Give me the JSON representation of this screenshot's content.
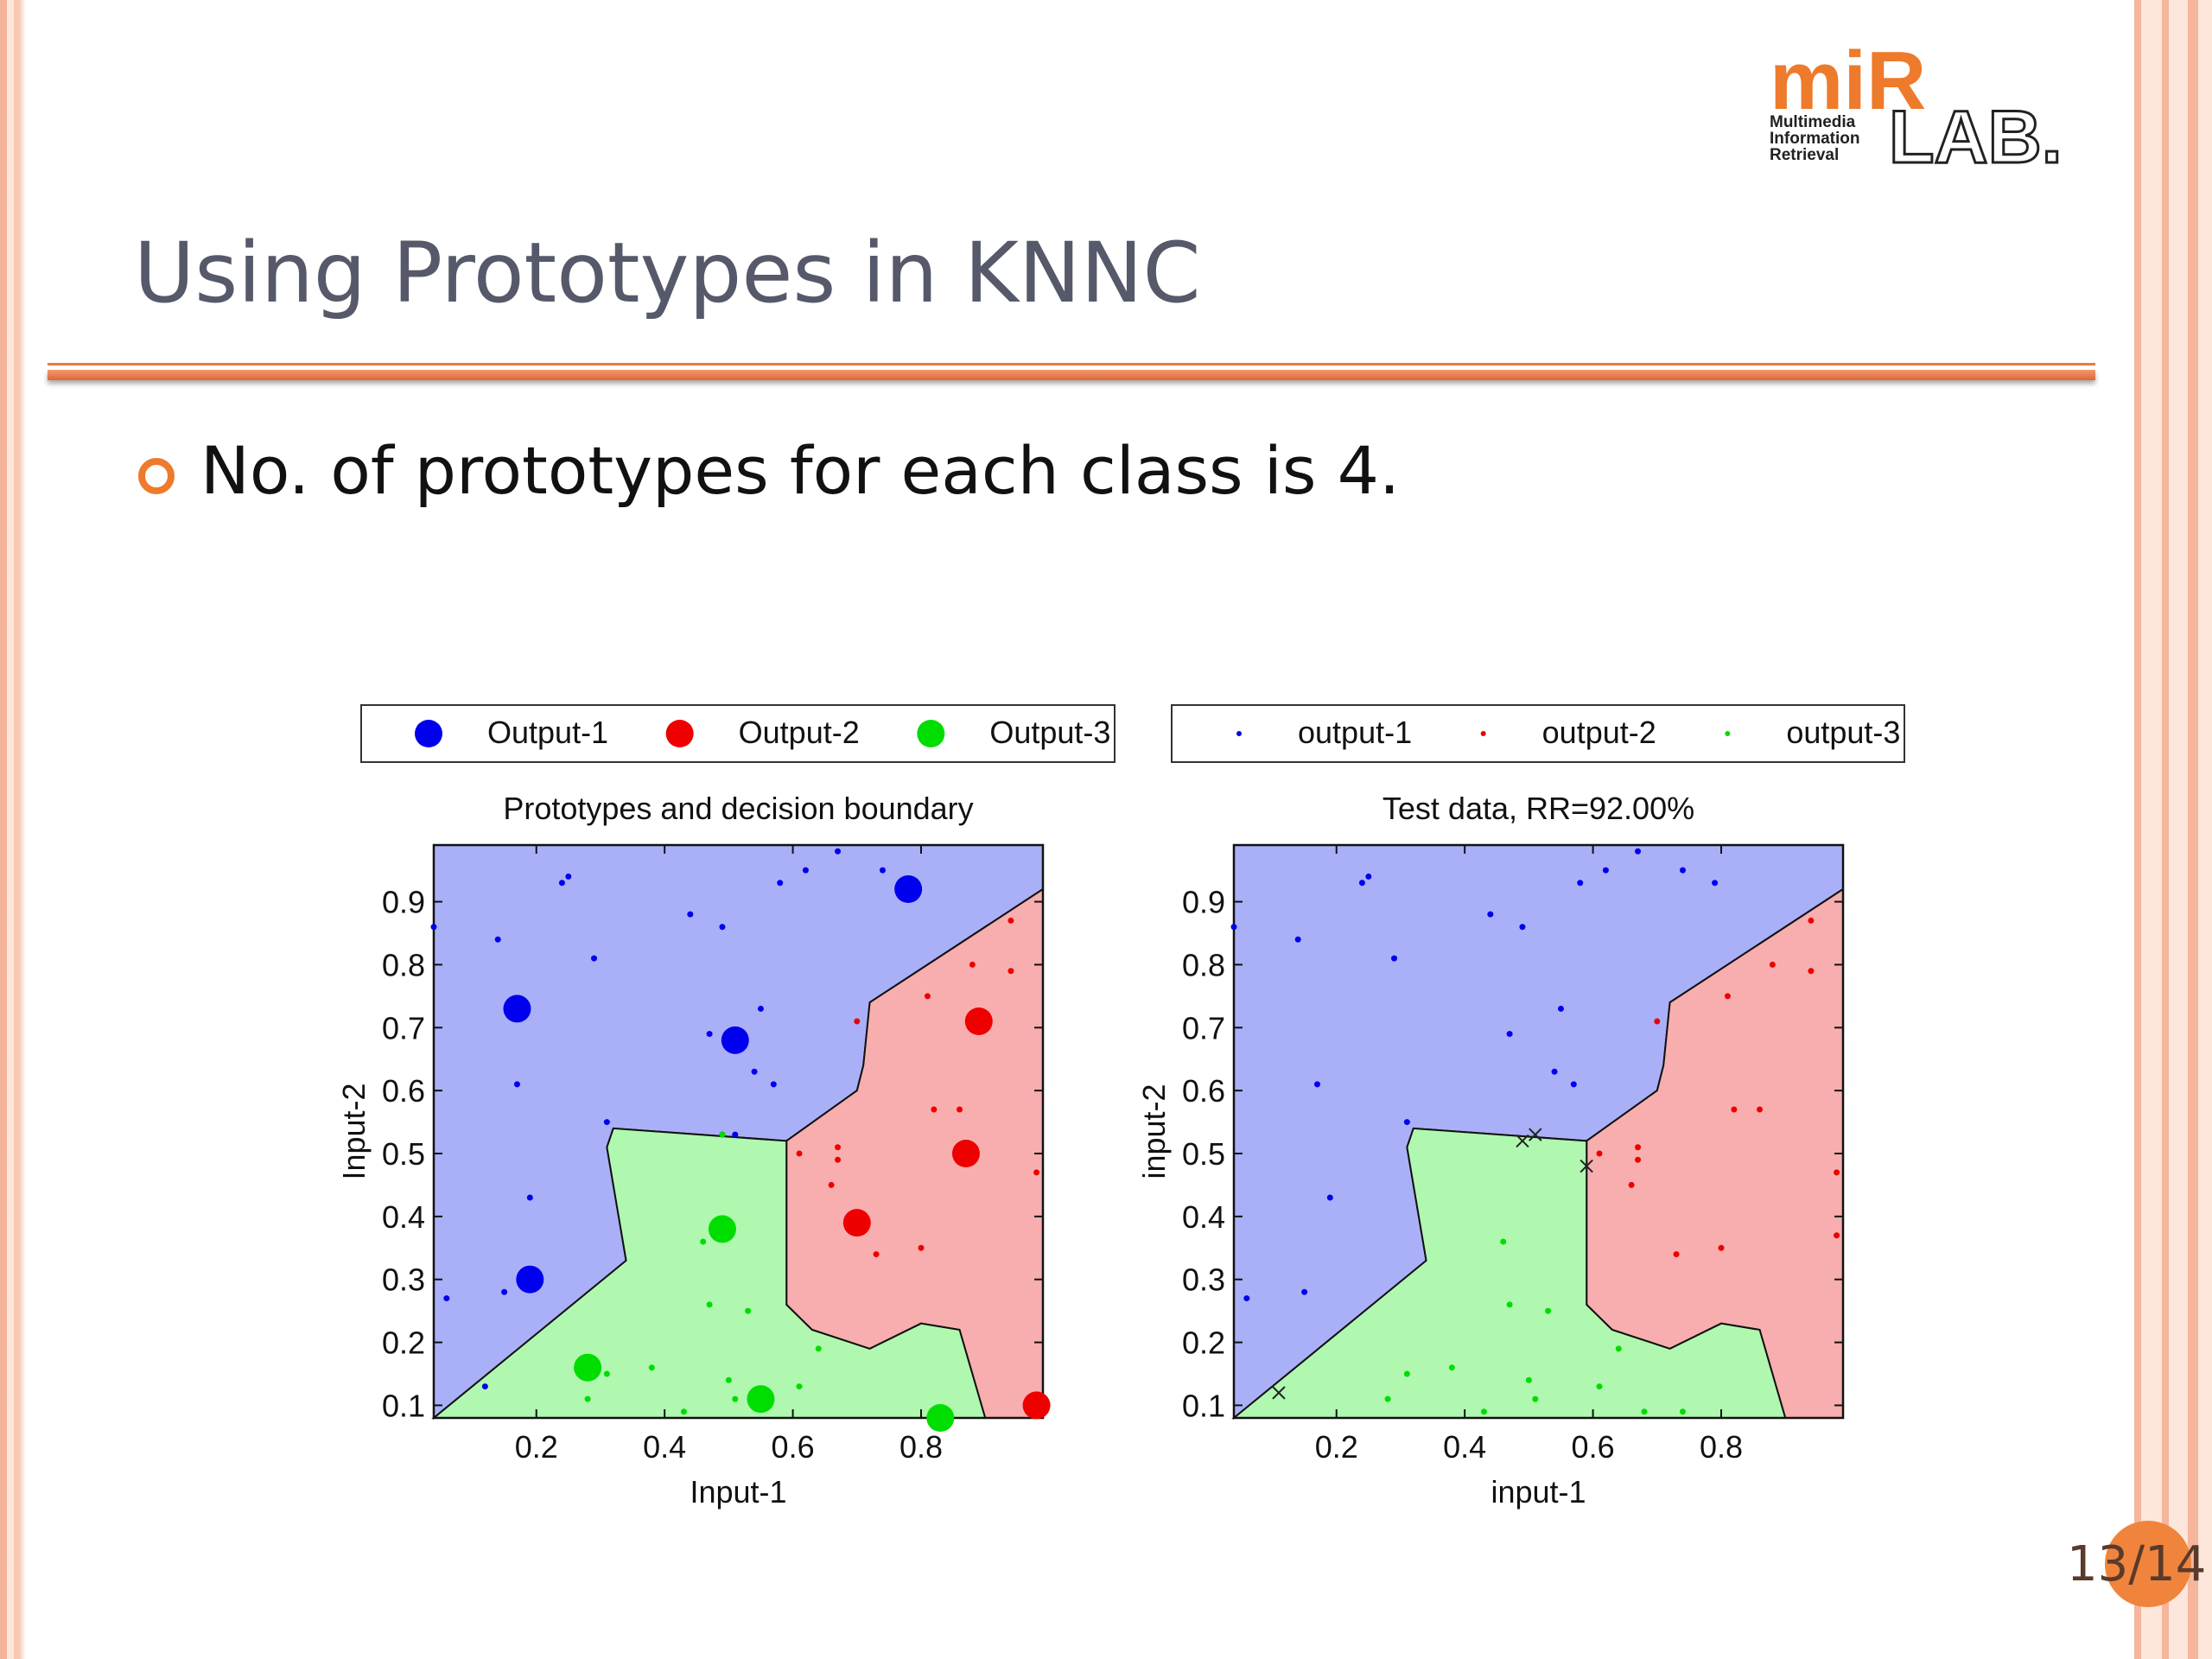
{
  "slide": {
    "title": "Using Prototypes in KNNC",
    "bullet": "No. of prototypes for each class is 4.",
    "page_number": "13/14",
    "logo": {
      "mir": "miR",
      "lines": [
        "Multimedia",
        "Information",
        "Retrieval"
      ],
      "lab": "LAB."
    }
  },
  "colors": {
    "class1": "#0000ee",
    "class2": "#ee0000",
    "class3": "#00dd00",
    "region1": "#aab0f8",
    "region2": "#f8aeae",
    "region3": "#b0f8b0",
    "accent": "#ee7a2c"
  },
  "chart_data": [
    {
      "type": "scatter",
      "title": "Prototypes and decision boundary",
      "xlabel": "Input-1",
      "ylabel": "Input-2",
      "xlim": [
        0.04,
        0.99
      ],
      "ylim": [
        0.08,
        0.99
      ],
      "xticks": [
        "0.2",
        "0.4",
        "0.6",
        "0.8"
      ],
      "yticks": [
        "0.1",
        "0.2",
        "0.3",
        "0.4",
        "0.5",
        "0.6",
        "0.7",
        "0.8",
        "0.9"
      ],
      "legend": {
        "position": "top",
        "entries": [
          "Output-1",
          "Output-2",
          "Output-3"
        ]
      },
      "prototypes": [
        {
          "class": 1,
          "points": [
            [
              0.17,
              0.73
            ],
            [
              0.51,
              0.68
            ],
            [
              0.19,
              0.3
            ],
            [
              0.78,
              0.92
            ]
          ]
        },
        {
          "class": 2,
          "points": [
            [
              0.89,
              0.71
            ],
            [
              0.87,
              0.5
            ],
            [
              0.7,
              0.39
            ],
            [
              0.98,
              0.1
            ]
          ]
        },
        {
          "class": 3,
          "points": [
            [
              0.49,
              0.38
            ],
            [
              0.28,
              0.16
            ],
            [
              0.55,
              0.11
            ],
            [
              0.83,
              0.08
            ]
          ]
        }
      ],
      "training_points": [
        {
          "class": 1,
          "points": [
            [
              0.04,
              0.86
            ],
            [
              0.14,
              0.84
            ],
            [
              0.24,
              0.93
            ],
            [
              0.25,
              0.94
            ],
            [
              0.29,
              0.81
            ],
            [
              0.44,
              0.88
            ],
            [
              0.49,
              0.86
            ],
            [
              0.58,
              0.93
            ],
            [
              0.62,
              0.95
            ],
            [
              0.67,
              0.98
            ],
            [
              0.74,
              0.95
            ],
            [
              0.79,
              0.93
            ],
            [
              0.47,
              0.69
            ],
            [
              0.55,
              0.73
            ],
            [
              0.54,
              0.63
            ],
            [
              0.57,
              0.61
            ],
            [
              0.17,
              0.61
            ],
            [
              0.31,
              0.55
            ],
            [
              0.19,
              0.43
            ],
            [
              0.06,
              0.27
            ],
            [
              0.15,
              0.28
            ],
            [
              0.12,
              0.13
            ],
            [
              0.49,
              0.53
            ],
            [
              0.51,
              0.53
            ]
          ]
        },
        {
          "class": 2,
          "points": [
            [
              0.94,
              0.87
            ],
            [
              0.94,
              0.79
            ],
            [
              0.88,
              0.8
            ],
            [
              0.81,
              0.75
            ],
            [
              0.7,
              0.71
            ],
            [
              0.67,
              0.51
            ],
            [
              0.67,
              0.49
            ],
            [
              0.61,
              0.5
            ],
            [
              0.82,
              0.57
            ],
            [
              0.86,
              0.57
            ],
            [
              0.66,
              0.45
            ],
            [
              0.73,
              0.34
            ],
            [
              0.8,
              0.35
            ],
            [
              0.98,
              0.47
            ]
          ]
        },
        {
          "class": 3,
          "points": [
            [
              0.49,
              0.53
            ],
            [
              0.31,
              0.15
            ],
            [
              0.38,
              0.16
            ],
            [
              0.46,
              0.36
            ],
            [
              0.47,
              0.26
            ],
            [
              0.5,
              0.14
            ],
            [
              0.51,
              0.11
            ],
            [
              0.53,
              0.25
            ],
            [
              0.61,
              0.13
            ],
            [
              0.64,
              0.19
            ],
            [
              0.28,
              0.11
            ],
            [
              0.43,
              0.09
            ]
          ]
        }
      ]
    },
    {
      "type": "scatter",
      "title": "Test data, RR=92.00%",
      "xlabel": "input-1",
      "ylabel": "input-2",
      "xlim": [
        0.04,
        0.99
      ],
      "ylim": [
        0.08,
        0.99
      ],
      "xticks": [
        "0.2",
        "0.4",
        "0.6",
        "0.8"
      ],
      "yticks": [
        "0.1",
        "0.2",
        "0.3",
        "0.4",
        "0.5",
        "0.6",
        "0.7",
        "0.8",
        "0.9"
      ],
      "legend": {
        "position": "top",
        "entries": [
          "output-1",
          "output-2",
          "output-3"
        ]
      },
      "test_points": [
        {
          "class": 1,
          "points": [
            [
              0.04,
              0.86
            ],
            [
              0.14,
              0.84
            ],
            [
              0.24,
              0.93
            ],
            [
              0.25,
              0.94
            ],
            [
              0.29,
              0.81
            ],
            [
              0.44,
              0.88
            ],
            [
              0.49,
              0.86
            ],
            [
              0.58,
              0.93
            ],
            [
              0.62,
              0.95
            ],
            [
              0.67,
              0.98
            ],
            [
              0.74,
              0.95
            ],
            [
              0.79,
              0.93
            ],
            [
              0.47,
              0.69
            ],
            [
              0.55,
              0.73
            ],
            [
              0.54,
              0.63
            ],
            [
              0.57,
              0.61
            ],
            [
              0.17,
              0.61
            ],
            [
              0.31,
              0.55
            ],
            [
              0.19,
              0.43
            ],
            [
              0.06,
              0.27
            ],
            [
              0.15,
              0.28
            ]
          ]
        },
        {
          "class": 2,
          "points": [
            [
              0.94,
              0.87
            ],
            [
              0.94,
              0.79
            ],
            [
              0.88,
              0.8
            ],
            [
              0.81,
              0.75
            ],
            [
              0.7,
              0.71
            ],
            [
              0.67,
              0.51
            ],
            [
              0.67,
              0.49
            ],
            [
              0.61,
              0.5
            ],
            [
              0.82,
              0.57
            ],
            [
              0.86,
              0.57
            ],
            [
              0.66,
              0.45
            ],
            [
              0.73,
              0.34
            ],
            [
              0.8,
              0.35
            ],
            [
              0.98,
              0.47
            ],
            [
              0.98,
              0.37
            ]
          ]
        },
        {
          "class": 3,
          "points": [
            [
              0.31,
              0.15
            ],
            [
              0.38,
              0.16
            ],
            [
              0.46,
              0.36
            ],
            [
              0.47,
              0.26
            ],
            [
              0.5,
              0.14
            ],
            [
              0.51,
              0.11
            ],
            [
              0.53,
              0.25
            ],
            [
              0.61,
              0.13
            ],
            [
              0.64,
              0.19
            ],
            [
              0.28,
              0.11
            ],
            [
              0.43,
              0.09
            ],
            [
              0.74,
              0.09
            ],
            [
              0.68,
              0.09
            ]
          ]
        }
      ],
      "misclassified": [
        [
          0.11,
          0.12
        ],
        [
          0.49,
          0.52
        ],
        [
          0.51,
          0.53
        ],
        [
          0.59,
          0.48
        ]
      ]
    }
  ]
}
